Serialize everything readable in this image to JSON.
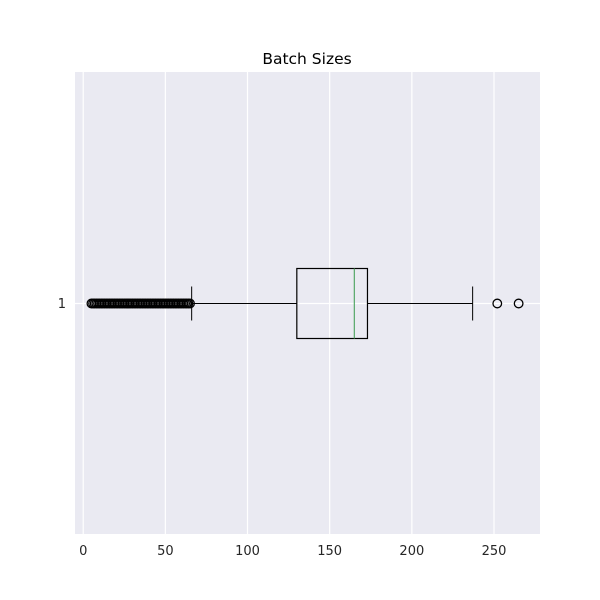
{
  "chart_data": {
    "type": "boxplot",
    "orientation": "horizontal",
    "title": "Batch Sizes",
    "xlabel": "",
    "ylabel": "",
    "xlim": [
      -5,
      278
    ],
    "x_ticks": [
      0,
      50,
      100,
      150,
      200,
      250
    ],
    "y_categories": [
      "1"
    ],
    "grid": true,
    "series": [
      {
        "category": "1",
        "whisker_low": 66,
        "q1": 130,
        "median": 165,
        "q3": 173,
        "whisker_high": 237,
        "outliers_low": [
          5,
          6,
          7,
          8,
          9,
          10,
          11,
          12,
          13,
          14,
          15,
          16,
          17,
          18,
          19,
          20,
          21,
          22,
          23,
          24,
          25,
          26,
          27,
          28,
          29,
          30,
          31,
          32,
          33,
          34,
          35,
          36,
          37,
          38,
          39,
          40,
          41,
          42,
          43,
          44,
          45,
          46,
          47,
          48,
          49,
          50,
          51,
          52,
          53,
          54,
          55,
          56,
          57,
          58,
          59,
          60,
          61,
          62,
          63,
          64,
          65
        ],
        "outliers_high": [
          252,
          265
        ]
      }
    ],
    "colors": {
      "background": "#eaeaf2",
      "grid": "#ffffff",
      "box": "#000000",
      "median": "#55a868",
      "outlier": "#000000"
    }
  }
}
